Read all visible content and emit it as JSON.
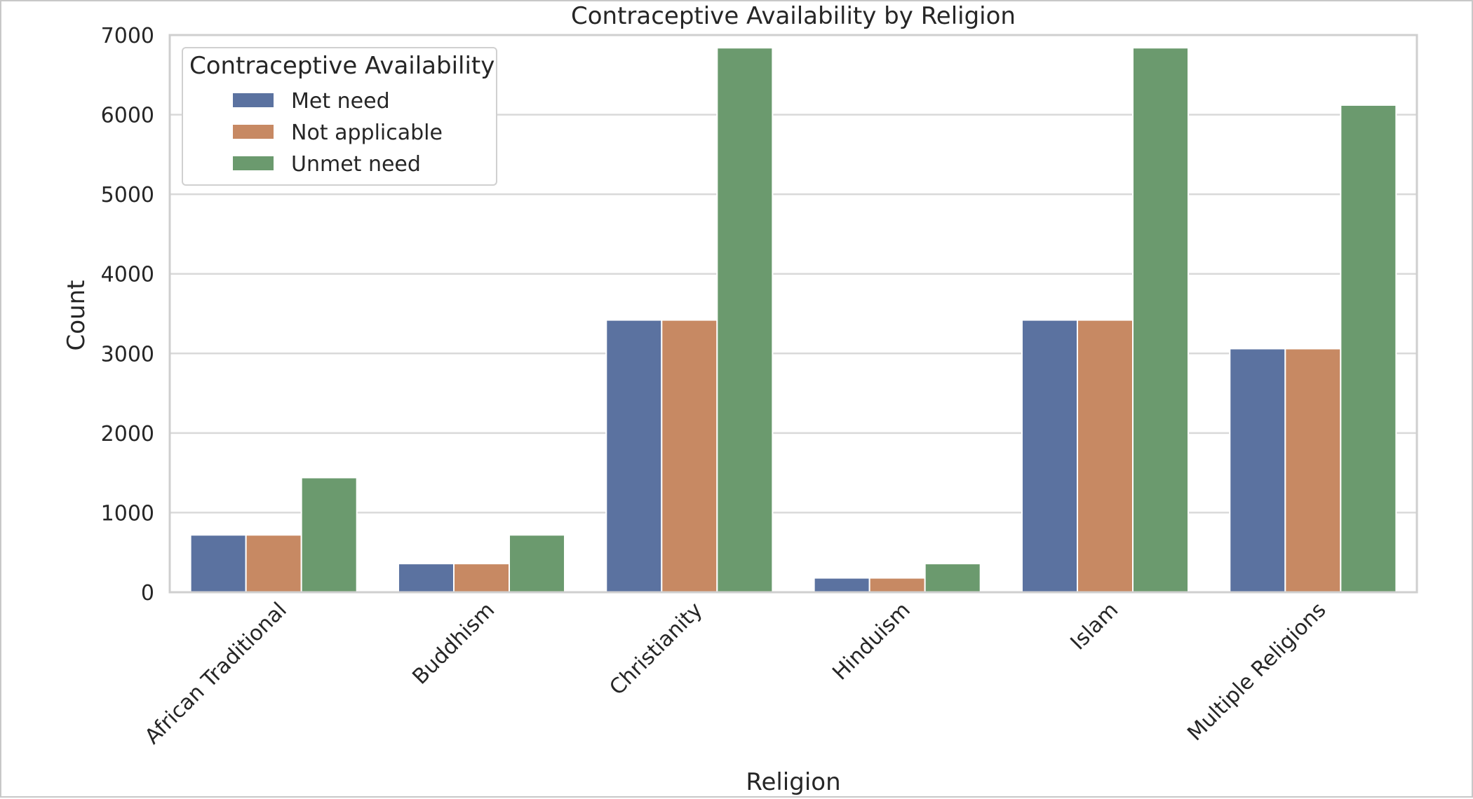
{
  "chart_data": {
    "type": "bar",
    "title": "Contraceptive Availability by Religion",
    "xlabel": "Religion",
    "ylabel": "Count",
    "categories": [
      "African Traditional",
      "Buddhism",
      "Christianity",
      "Hinduism",
      "Islam",
      "Multiple Religions"
    ],
    "series": [
      {
        "name": "Met need",
        "color": "#5b72a0",
        "values": [
          720,
          360,
          3420,
          180,
          3420,
          3060
        ]
      },
      {
        "name": "Not applicable",
        "color": "#c78963",
        "values": [
          720,
          360,
          3420,
          180,
          3420,
          3060
        ]
      },
      {
        "name": "Unmet need",
        "color": "#6b9a6e",
        "values": [
          1440,
          720,
          6840,
          360,
          6840,
          6120
        ]
      }
    ],
    "ylim": [
      0,
      7000
    ],
    "yticks": [
      "0",
      "1000",
      "2000",
      "3000",
      "4000",
      "5000",
      "6000",
      "7000"
    ],
    "grid": true,
    "legend": {
      "title": "Contraceptive Availability",
      "placement": "top-left"
    },
    "colors": {
      "background": "#ffffff",
      "grid": "#d9d9d9",
      "frame": "#cfcfcf",
      "text": "#262626"
    }
  }
}
